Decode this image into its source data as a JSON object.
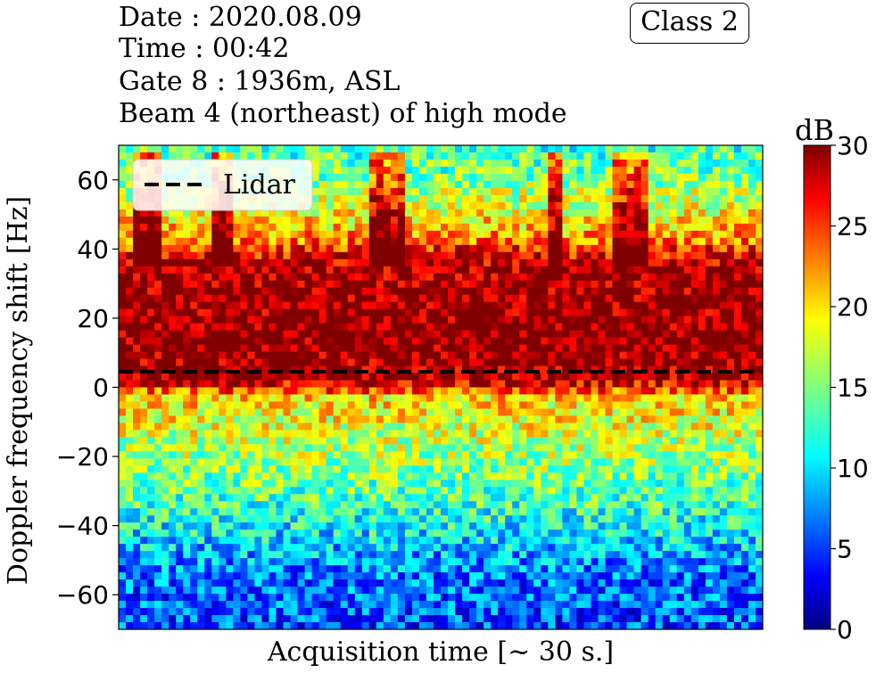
{
  "header": {
    "date": "Date : 2020.08.09",
    "time": "Time : 00:42",
    "gate": "Gate 8 : 1936m, ASL",
    "beam": "Beam 4 (northeast) of high mode",
    "class_label": "Class 2"
  },
  "chart_data": {
    "type": "heatmap",
    "title": "",
    "xlabel": "Acquisition time [~ 30 s.]",
    "ylabel": "Doppler frequency shift [Hz]",
    "ylim": [
      -70,
      70
    ],
    "yticks": [
      -60,
      -40,
      -20,
      0,
      20,
      40,
      60
    ],
    "xticks": [],
    "lidar_line": {
      "name": "Lidar",
      "y": 4.5,
      "style": "dashed",
      "color": "#000000"
    },
    "legend": {
      "entries": [
        "Lidar"
      ],
      "placement": "upper-left"
    },
    "colorbar": {
      "label": "dB",
      "range": [
        0,
        30
      ],
      "ticks": [
        0,
        5,
        10,
        15,
        20,
        25,
        30
      ],
      "colormap": "jet"
    },
    "intensity_profile_db": [
      {
        "hz": -70,
        "db": 6
      },
      {
        "hz": -55,
        "db": 7
      },
      {
        "hz": -45,
        "db": 10
      },
      {
        "hz": -30,
        "db": 14
      },
      {
        "hz": -15,
        "db": 17
      },
      {
        "hz": -3,
        "db": 20
      },
      {
        "hz": 2,
        "db": 29
      },
      {
        "hz": 15,
        "db": 30
      },
      {
        "hz": 35,
        "db": 29
      },
      {
        "hz": 45,
        "db": 21
      },
      {
        "hz": 60,
        "db": 15
      },
      {
        "hz": 70,
        "db": 13
      }
    ]
  }
}
